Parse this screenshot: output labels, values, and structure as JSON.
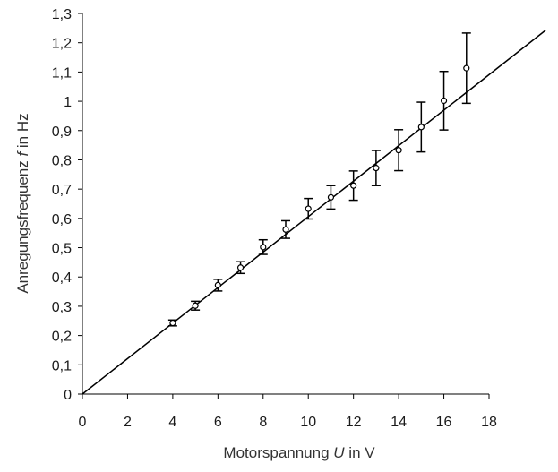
{
  "chart_data": {
    "type": "scatter",
    "xlabel": {
      "pre": "Motorspannung ",
      "var": "U",
      "post": " in V"
    },
    "ylabel": {
      "pre": "Anregungsfrequenz ",
      "var": "f",
      "post": " in Hz"
    },
    "xlim": [
      0,
      18
    ],
    "ylim": [
      0,
      1.3
    ],
    "x_ticks": [
      0,
      2,
      4,
      6,
      8,
      10,
      12,
      14,
      16,
      18
    ],
    "x_tick_labels": [
      "0",
      "2",
      "4",
      "6",
      "8",
      "10",
      "12",
      "14",
      "16",
      "18"
    ],
    "y_ticks": [
      0,
      0.1,
      0.2,
      0.3,
      0.4,
      0.5,
      0.6,
      0.7,
      0.8,
      0.9,
      1,
      1.1,
      1.2,
      1.3
    ],
    "y_tick_labels": [
      "0",
      "0,1",
      "0,2",
      "0,3",
      "0,4",
      "0,5",
      "0,6",
      "0,7",
      "0,8",
      "0,9",
      "1",
      "1,1",
      "1,2",
      "1,3"
    ],
    "grid": false,
    "series": [
      {
        "x": [
          4,
          5,
          6,
          7,
          8,
          9,
          10,
          11,
          12,
          13,
          14,
          15,
          16,
          17
        ],
        "y": [
          0.243,
          0.302,
          0.372,
          0.432,
          0.502,
          0.562,
          0.633,
          0.672,
          0.712,
          0.772,
          0.833,
          0.912,
          1.002,
          1.113
        ],
        "error": [
          0.01,
          0.015,
          0.02,
          0.02,
          0.025,
          0.03,
          0.035,
          0.04,
          0.05,
          0.06,
          0.07,
          0.085,
          0.1,
          0.12
        ]
      }
    ],
    "fit_line": {
      "slope": 0.0606,
      "intercept": 0,
      "x_range": [
        0,
        20.5
      ]
    },
    "colors": {
      "line": "#000000",
      "marker_fill": "#ffffff",
      "text": "#1a1a1a"
    }
  }
}
